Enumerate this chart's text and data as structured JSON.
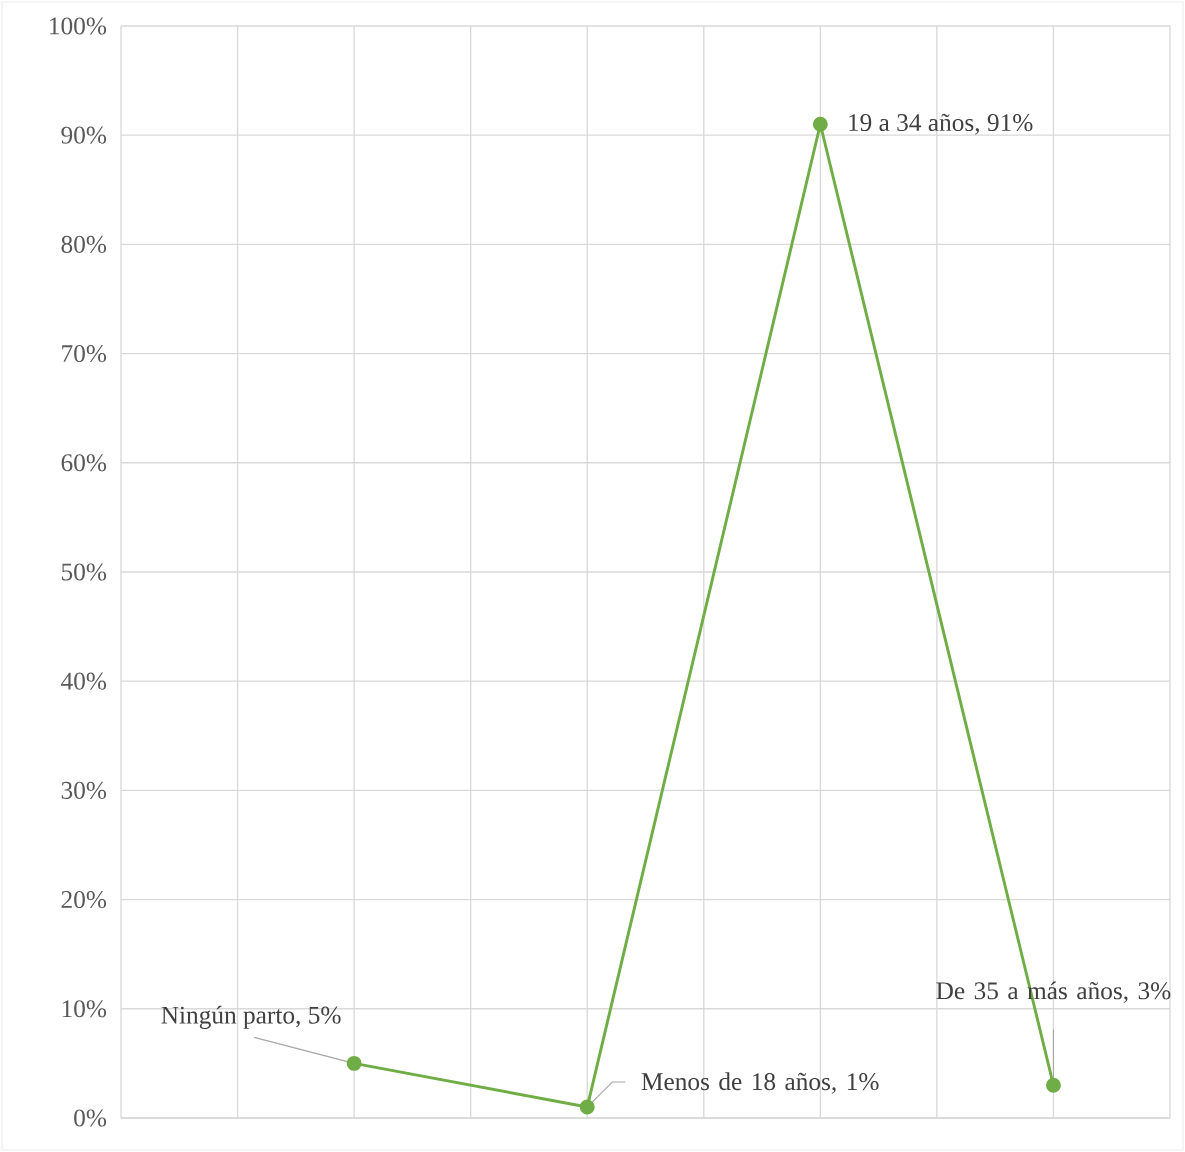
{
  "chart_data": {
    "type": "line",
    "categories": [
      null,
      null,
      null,
      null
    ],
    "series": [
      {
        "color": "#70ad47",
        "values": [
          5,
          1,
          91,
          3
        ]
      }
    ],
    "ylim": [
      0,
      100
    ],
    "yticks": [
      {
        "value": 0,
        "label": "0%"
      },
      {
        "value": 10,
        "label": "10%"
      },
      {
        "value": 20,
        "label": "20%"
      },
      {
        "value": 30,
        "label": "30%"
      },
      {
        "value": 40,
        "label": "40%"
      },
      {
        "value": 50,
        "label": "50%"
      },
      {
        "value": 60,
        "label": "60%"
      },
      {
        "value": 70,
        "label": "70%"
      },
      {
        "value": 80,
        "label": "80%"
      },
      {
        "value": 90,
        "label": "90%"
      },
      {
        "value": 100,
        "label": "100%"
      }
    ],
    "tick_labels": "y",
    "grid": true,
    "marker": "circle",
    "line_style": "solid",
    "annotations": [
      "Ningún parto, 5%",
      "Menos de 18 años, 1%",
      "19 a 34 años, 91%",
      "De 35 a más años, 3%"
    ]
  }
}
